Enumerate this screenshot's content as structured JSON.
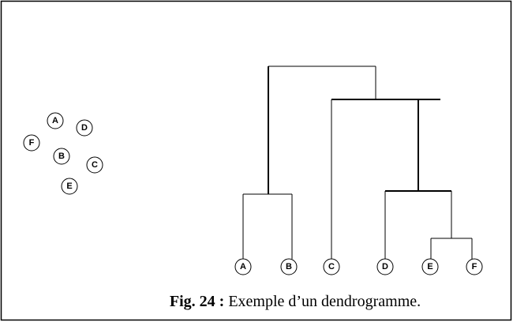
{
  "scatter_points": [
    {
      "label": "A"
    },
    {
      "label": "D"
    },
    {
      "label": "F"
    },
    {
      "label": "B"
    },
    {
      "label": "C"
    },
    {
      "label": "E"
    }
  ],
  "dendrogram_leaves": [
    {
      "label": "A"
    },
    {
      "label": "B"
    },
    {
      "label": "C"
    },
    {
      "label": "D"
    },
    {
      "label": "E"
    },
    {
      "label": "F"
    }
  ],
  "caption": {
    "label": "Fig. 24 :",
    "text": "Exemple d’un dendrogramme."
  }
}
